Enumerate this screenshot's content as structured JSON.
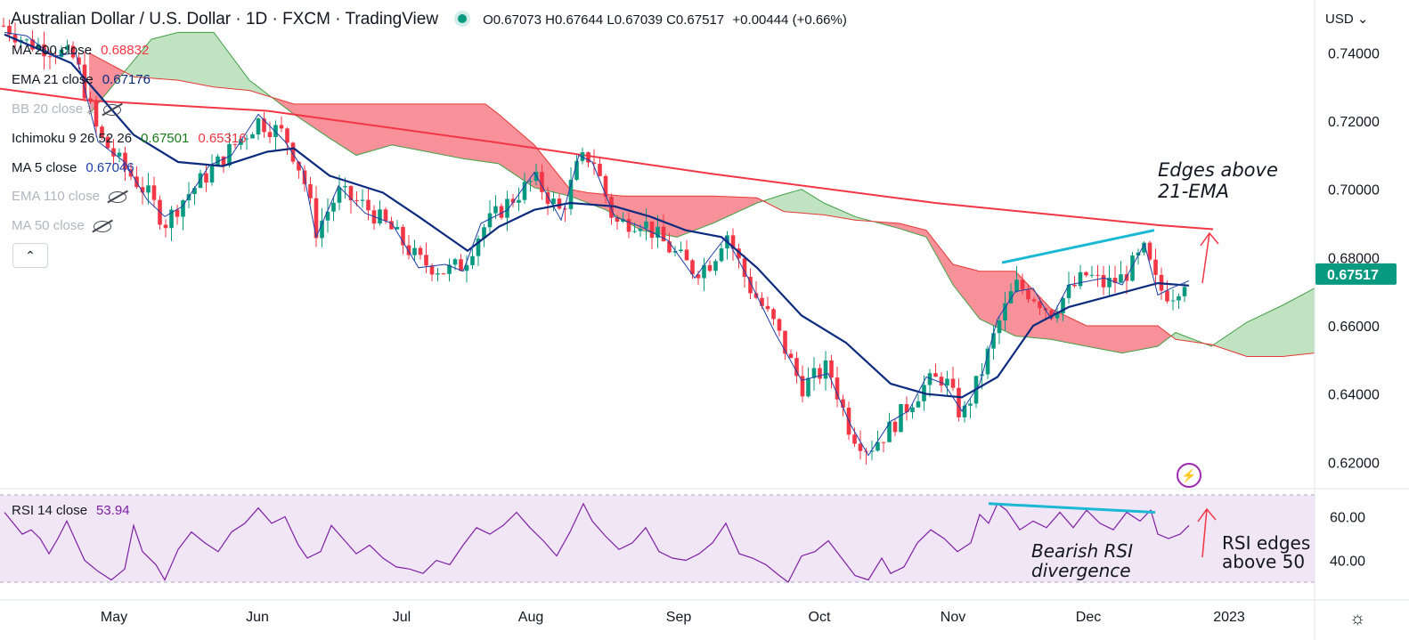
{
  "header": {
    "title": "Australian Dollar / U.S. Dollar · 1D · FXCM · TradingView",
    "ohlc": "O0.67073 H0.67644 L0.67039 C0.67517",
    "change": "+0.00444 (+0.66%)"
  },
  "indicators": [
    {
      "label": "MA 200 close",
      "value": "0.68832",
      "color": "#f23645",
      "hidden": false
    },
    {
      "label": "EMA 21 close",
      "value": "0.67176",
      "color": "#0d2b7e",
      "hidden": false
    },
    {
      "label": "BB 20 close 2",
      "value": "",
      "color": "#b2b5be",
      "hidden": true
    },
    {
      "label": "Ichimoku 9 26 52 26",
      "value": "0.67501",
      "value2": "0.65316",
      "color": "#1b7a1b",
      "color2": "#f23645",
      "hidden": false
    },
    {
      "label": "MA 5 close",
      "value": "0.67046",
      "color": "#1e3ea8",
      "hidden": false
    },
    {
      "label": "EMA 110 close",
      "value": "",
      "color": "#b2b5be",
      "hidden": true
    },
    {
      "label": "MA 50 close",
      "value": "",
      "color": "#b2b5be",
      "hidden": true
    }
  ],
  "currency": "USD",
  "rsi_legend": {
    "label": "RSI 14 close",
    "value": "53.94"
  },
  "annotations": {
    "price_note": "Edges above\n21-EMA",
    "rsi_div": "Bearish RSI\ndivergence",
    "rsi_note": "RSI edges\nabove 50"
  },
  "price_label": "0.67517",
  "colors": {
    "up": "#089981",
    "down": "#f23645",
    "ema21": "#0d2b7e",
    "ma5": "#1e3ea8",
    "ma200": "#f23645",
    "rsi": "#7e1fa5",
    "trend": "#1bb8d4",
    "arrow": "#f23645"
  },
  "chart_data": {
    "type": "candlestick",
    "symbol": "AUDUSD",
    "x_ticks": [
      "May",
      "Jun",
      "Jul",
      "Aug",
      "Sep",
      "Oct",
      "Nov",
      "Dec",
      "2023"
    ],
    "y_ticks": [
      "0.74000",
      "0.72000",
      "0.70000",
      "0.68000",
      "0.66000",
      "0.64000",
      "0.62000"
    ],
    "ylim": [
      0.6125,
      0.7555
    ],
    "last_close": 0.67517,
    "ma200": [
      [
        0,
        0.7295
      ],
      [
        100,
        0.726
      ],
      [
        300,
        0.723
      ],
      [
        550,
        0.714
      ],
      [
        800,
        0.7045
      ],
      [
        1050,
        0.696
      ],
      [
        1300,
        0.6895
      ],
      [
        1362,
        0.6883
      ]
    ],
    "ema21_points": [
      [
        5,
        0.7454
      ],
      [
        80,
        0.737
      ],
      [
        150,
        0.716
      ],
      [
        200,
        0.708
      ],
      [
        250,
        0.7068
      ],
      [
        300,
        0.711
      ],
      [
        330,
        0.712
      ],
      [
        370,
        0.704
      ],
      [
        430,
        0.699
      ],
      [
        470,
        0.692
      ],
      [
        525,
        0.682
      ],
      [
        560,
        0.689
      ],
      [
        600,
        0.694
      ],
      [
        640,
        0.696
      ],
      [
        690,
        0.695
      ],
      [
        730,
        0.692
      ],
      [
        770,
        0.688
      ],
      [
        810,
        0.686
      ],
      [
        850,
        0.677
      ],
      [
        900,
        0.663
      ],
      [
        950,
        0.655
      ],
      [
        1000,
        0.643
      ],
      [
        1040,
        0.64
      ],
      [
        1080,
        0.639
      ],
      [
        1120,
        0.645
      ],
      [
        1160,
        0.66
      ],
      [
        1200,
        0.6655
      ],
      [
        1250,
        0.669
      ],
      [
        1300,
        0.6725
      ],
      [
        1335,
        0.6718
      ]
    ],
    "rsi_ticks": [
      "60.00",
      "40.00"
    ],
    "rsi_range": [
      28,
      70
    ],
    "rsi": [
      [
        5,
        62
      ],
      [
        15,
        57
      ],
      [
        25,
        52
      ],
      [
        35,
        54
      ],
      [
        45,
        50
      ],
      [
        55,
        43
      ],
      [
        65,
        50
      ],
      [
        75,
        58
      ],
      [
        85,
        49
      ],
      [
        95,
        40
      ],
      [
        110,
        35
      ],
      [
        125,
        31
      ],
      [
        140,
        36
      ],
      [
        150,
        56
      ],
      [
        160,
        44
      ],
      [
        175,
        38
      ],
      [
        185,
        31
      ],
      [
        200,
        45
      ],
      [
        215,
        53
      ],
      [
        230,
        48
      ],
      [
        245,
        44
      ],
      [
        260,
        53
      ],
      [
        275,
        57
      ],
      [
        290,
        64
      ],
      [
        305,
        57
      ],
      [
        320,
        60
      ],
      [
        335,
        47
      ],
      [
        345,
        41
      ],
      [
        360,
        44
      ],
      [
        372,
        56
      ],
      [
        385,
        50
      ],
      [
        400,
        43
      ],
      [
        415,
        47
      ],
      [
        430,
        41
      ],
      [
        445,
        37
      ],
      [
        460,
        36
      ],
      [
        475,
        34
      ],
      [
        490,
        40
      ],
      [
        505,
        38
      ],
      [
        520,
        47
      ],
      [
        535,
        55
      ],
      [
        550,
        52
      ],
      [
        565,
        56
      ],
      [
        580,
        62
      ],
      [
        595,
        55
      ],
      [
        610,
        49
      ],
      [
        625,
        42
      ],
      [
        640,
        53
      ],
      [
        655,
        66
      ],
      [
        665,
        58
      ],
      [
        680,
        51
      ],
      [
        695,
        45
      ],
      [
        710,
        48
      ],
      [
        725,
        55
      ],
      [
        740,
        44
      ],
      [
        755,
        41
      ],
      [
        770,
        40
      ],
      [
        785,
        43
      ],
      [
        800,
        48
      ],
      [
        815,
        57
      ],
      [
        830,
        43
      ],
      [
        845,
        41
      ],
      [
        860,
        38
      ],
      [
        875,
        33
      ],
      [
        885,
        30
      ],
      [
        900,
        42
      ],
      [
        915,
        44
      ],
      [
        930,
        49
      ],
      [
        945,
        41
      ],
      [
        960,
        33
      ],
      [
        975,
        31
      ],
      [
        990,
        41
      ],
      [
        1000,
        34
      ],
      [
        1015,
        37
      ],
      [
        1030,
        48
      ],
      [
        1045,
        54
      ],
      [
        1060,
        50
      ],
      [
        1075,
        44
      ],
      [
        1090,
        48
      ],
      [
        1100,
        61
      ],
      [
        1110,
        57
      ],
      [
        1120,
        66
      ],
      [
        1130,
        63
      ],
      [
        1145,
        54
      ],
      [
        1160,
        58
      ],
      [
        1175,
        55
      ],
      [
        1190,
        62
      ],
      [
        1205,
        55
      ],
      [
        1220,
        63
      ],
      [
        1235,
        57
      ],
      [
        1250,
        54
      ],
      [
        1265,
        62
      ],
      [
        1280,
        58
      ],
      [
        1292,
        63
      ],
      [
        1300,
        52
      ],
      [
        1312,
        50
      ],
      [
        1325,
        52
      ],
      [
        1335,
        56
      ]
    ]
  }
}
